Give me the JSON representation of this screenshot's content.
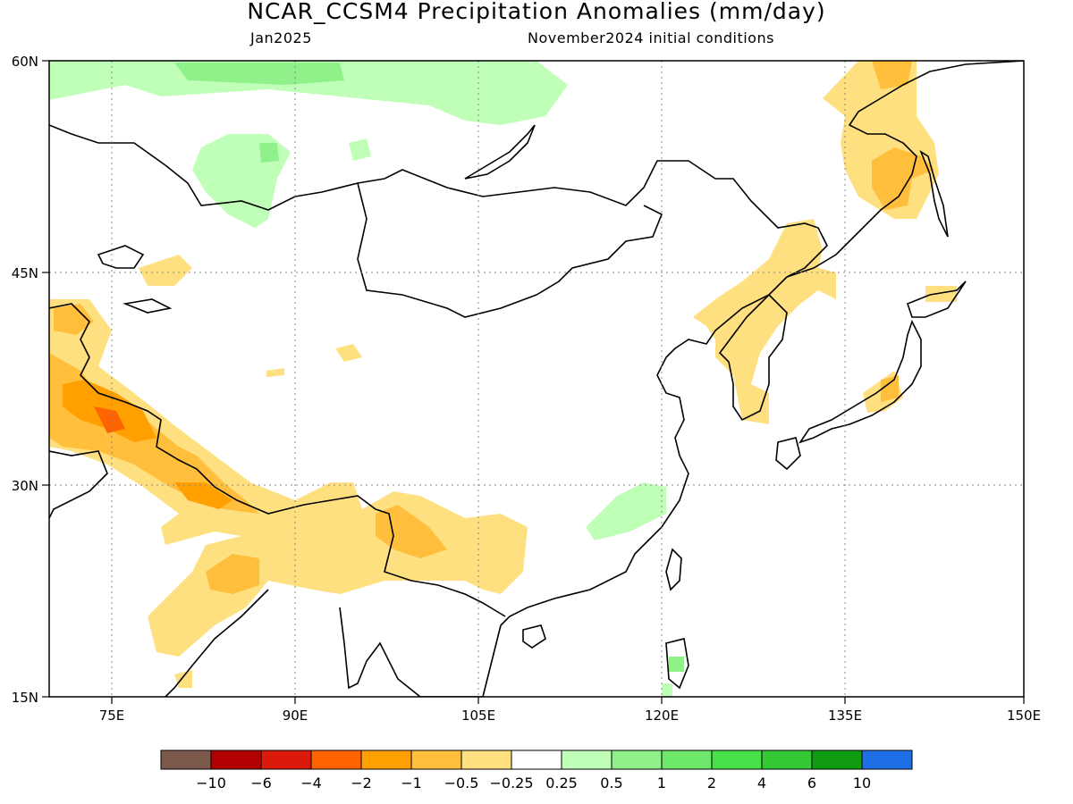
{
  "title": "NCAR_CCSM4 Precipitation Anomalies (mm/day)",
  "subtitle_left": "Jan2025",
  "subtitle_right": "November2024 initial conditions",
  "map": {
    "lat_range": [
      15,
      60
    ],
    "lon_range": [
      70,
      150
    ],
    "lat_ticks": [
      "60N",
      "45N",
      "30N",
      "15N"
    ],
    "lon_ticks": [
      "75E",
      "90E",
      "105E",
      "120E",
      "135E",
      "150E"
    ],
    "gridlines": "dotted"
  },
  "legend": {
    "colors": [
      "#7b5a4c",
      "#b30000",
      "#dc1a0c",
      "#ff6400",
      "#ffa000",
      "#ffbe3c",
      "#ffe080",
      "#ffffff",
      "#c0ffb8",
      "#90f08a",
      "#6ee86a",
      "#48e048",
      "#34c834",
      "#109c10",
      "#1e6ee6"
    ],
    "labels": [
      "-10",
      "-6",
      "-4",
      "-2",
      "-1",
      "-0.5",
      "-0.25",
      "0.25",
      "0.5",
      "1",
      "2",
      "4",
      "6",
      "10"
    ]
  }
}
